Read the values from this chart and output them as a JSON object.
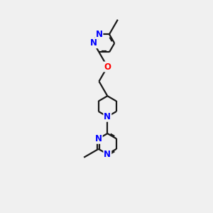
{
  "bg_color": "#f0f0f0",
  "bond_color": "#1a1a1a",
  "n_color": "#0000ff",
  "o_color": "#ff0000",
  "line_width": 1.6,
  "font_size": 8.5,
  "figsize": [
    3.0,
    3.0
  ],
  "dpi": 100,
  "xlim": [
    2.5,
    7.5
  ],
  "ylim": [
    0.5,
    9.5
  ]
}
